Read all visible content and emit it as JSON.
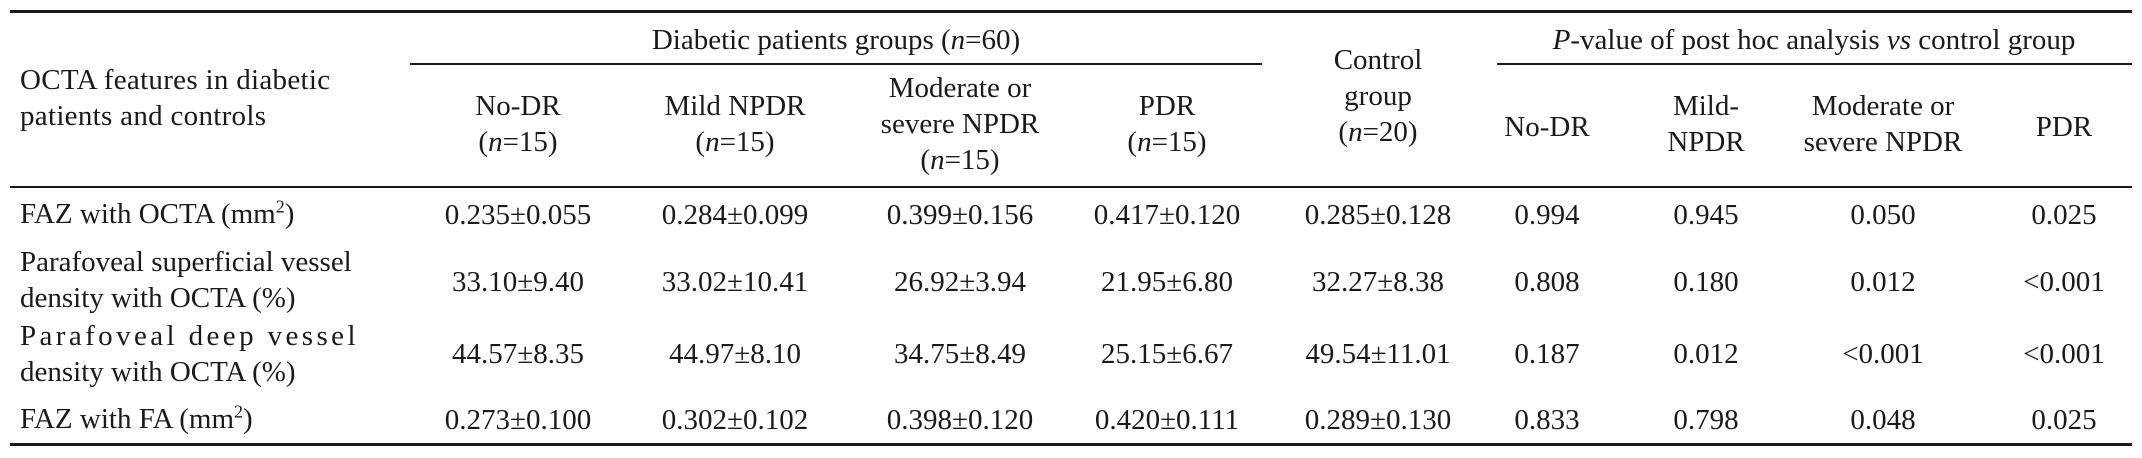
{
  "header": {
    "stub_line1": "OCTA features in diabetic",
    "stub_line2": "patients and controls",
    "diabetic_group_pre": "Diabetic patients groups (",
    "diabetic_group_n": "n",
    "diabetic_group_post": "=60)",
    "control_line1": "Control",
    "control_line2": "group",
    "control_n_pre": "(",
    "control_n_italic": "n",
    "control_n_post": "=20)",
    "pvalue_italic": "P",
    "pvalue_rest": "-value of post hoc analysis ",
    "pvalue_vs": "vs",
    "pvalue_tail": " control group",
    "groups": [
      {
        "line1": "No-DR",
        "n_pre": "(",
        "n_italic": "n",
        "n_post": "=15)"
      },
      {
        "line1": "Mild NPDR",
        "n_pre": "(",
        "n_italic": "n",
        "n_post": "=15)"
      },
      {
        "line1": "Moderate or",
        "line2": "severe NPDR",
        "n_pre": "(",
        "n_italic": "n",
        "n_post": "=15)"
      },
      {
        "line1": "PDR",
        "n_pre": "(",
        "n_italic": "n",
        "n_post": "=15)"
      }
    ],
    "posthoc": [
      {
        "line1": "No-DR"
      },
      {
        "line1": "Mild-",
        "line2": "NPDR"
      },
      {
        "line1": "Moderate or",
        "line2": "severe NPDR"
      },
      {
        "line1": "PDR"
      }
    ]
  },
  "rows": [
    {
      "label_line1": "FAZ with OCTA (mm",
      "label_sup": "2",
      "label_close": ")",
      "values": [
        "0.235±0.055",
        "0.284±0.099",
        "0.399±0.156",
        "0.417±0.120",
        "0.285±0.128",
        "0.994",
        "0.945",
        "0.050",
        "0.025"
      ]
    },
    {
      "label_line1": "Parafoveal superficial vessel",
      "label_line2": "density with OCTA (%)",
      "values": [
        "33.10±9.40",
        "33.02±10.41",
        "26.92±3.94",
        "21.95±6.80",
        "32.27±8.38",
        "0.808",
        "0.180",
        "0.012",
        "<0.001"
      ]
    },
    {
      "label_line1": "Parafoveal deep vessel",
      "label_line2": "density with OCTA (%)",
      "values": [
        "44.57±8.35",
        "44.97±8.10",
        "34.75±8.49",
        "25.15±6.67",
        "49.54±11.01",
        "0.187",
        "0.012",
        "<0.001",
        "<0.001"
      ]
    },
    {
      "label_line1": "FAZ with FA (mm",
      "label_sup": "2",
      "label_close": ")",
      "values": [
        "0.273±0.100",
        "0.302±0.102",
        "0.398±0.120",
        "0.420±0.111",
        "0.289±0.130",
        "0.833",
        "0.798",
        "0.048",
        "0.025"
      ]
    }
  ]
}
